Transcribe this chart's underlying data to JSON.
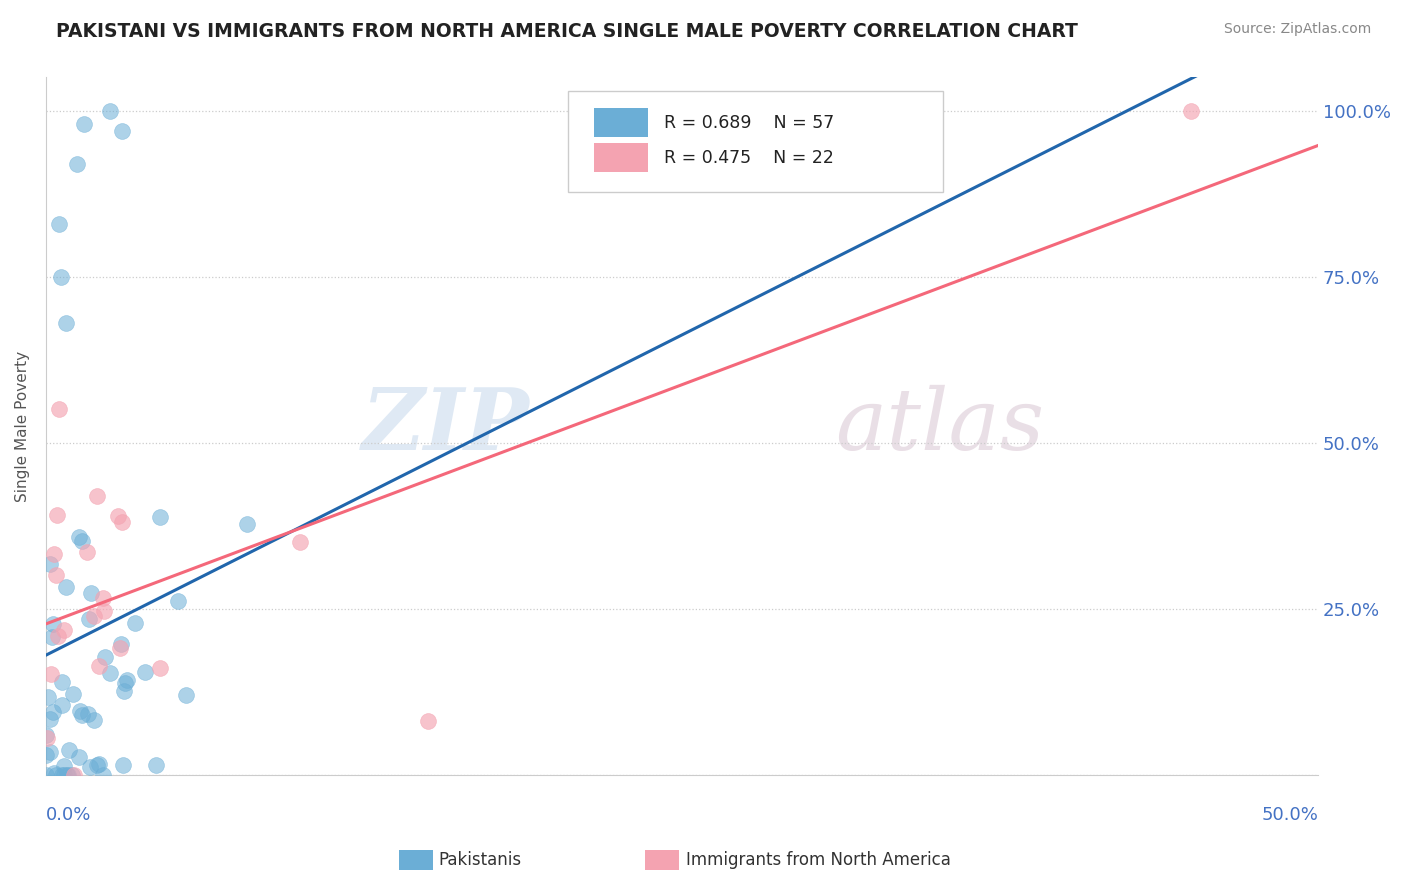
{
  "title": "PAKISTANI VS IMMIGRANTS FROM NORTH AMERICA SINGLE MALE POVERTY CORRELATION CHART",
  "source": "Source: ZipAtlas.com",
  "ylabel": "Single Male Poverty",
  "xlim": [
    0.0,
    0.5
  ],
  "ylim": [
    0.0,
    1.05
  ],
  "xticks": [
    0.0,
    0.05,
    0.1,
    0.15,
    0.2,
    0.25,
    0.3,
    0.35,
    0.4,
    0.45,
    0.5
  ],
  "ytick_labels": [
    "",
    "25.0%",
    "50.0%",
    "75.0%",
    "100.0%"
  ],
  "yticks": [
    0.0,
    0.25,
    0.5,
    0.75,
    1.0
  ],
  "blue_color": "#6baed6",
  "pink_color": "#f4a3b1",
  "blue_line_color": "#2166ac",
  "pink_line_color": "#f4687a",
  "R_blue": 0.689,
  "N_blue": 57,
  "R_pink": 0.475,
  "N_pink": 22,
  "watermark_zip": "ZIP",
  "watermark_atlas": "atlas",
  "legend_label_blue": "Pakistanis",
  "legend_label_pink": "Immigrants from North America",
  "label_color_R": "#4472c4",
  "label_color_N": "#4472c4",
  "title_color": "#222222",
  "source_color": "#888888",
  "axis_label_color": "#4472c4",
  "ylabel_color": "#555555"
}
